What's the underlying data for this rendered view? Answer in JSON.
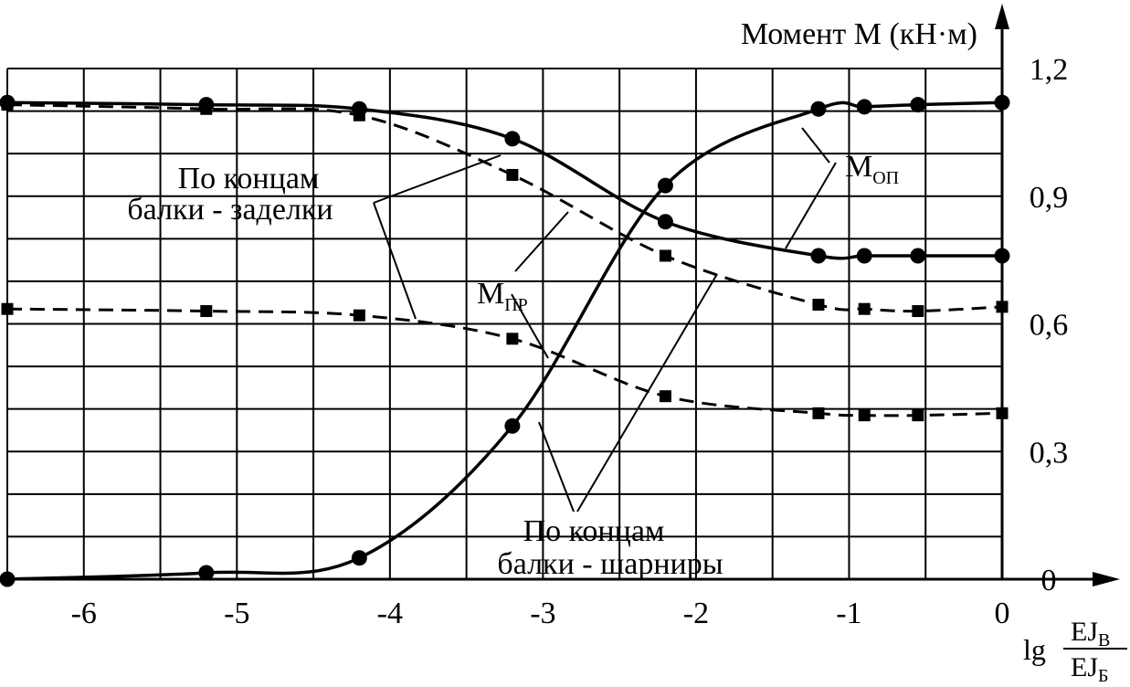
{
  "chart_data": {
    "type": "line",
    "ylabel": "Момент М (кН·м)",
    "xlabel": {
      "prefix": "lg",
      "numerator": "EJ",
      "numerator_sub": "В",
      "denominator": "EJ",
      "denominator_sub": "Б"
    },
    "xlim": [
      -6.5,
      0
    ],
    "ylim": [
      0,
      1.2
    ],
    "x_ticks": [
      -6,
      -5,
      -4,
      -3,
      -2,
      -1,
      0
    ],
    "y_ticks": [
      {
        "value": 0,
        "label": "0"
      },
      {
        "value": 0.3,
        "label": "0,3"
      },
      {
        "value": 0.6,
        "label": "0,6"
      },
      {
        "value": 0.9,
        "label": "0,9"
      },
      {
        "value": 1.2,
        "label": "1,2"
      }
    ],
    "grid": true,
    "series": [
      {
        "marker": "circle",
        "style": "solid",
        "points": [
          [
            -6.5,
            1.12
          ],
          [
            -5.2,
            1.115
          ],
          [
            -4.2,
            1.105
          ],
          [
            -3.2,
            1.035
          ],
          [
            -2.2,
            0.84
          ],
          [
            -1.2,
            0.76
          ],
          [
            -0.9,
            0.76
          ],
          [
            -0.55,
            0.76
          ],
          [
            0,
            0.76
          ]
        ]
      },
      {
        "marker": "circle",
        "style": "solid",
        "points": [
          [
            -6.5,
            0.0
          ],
          [
            -5.2,
            0.015
          ],
          [
            -4.2,
            0.05
          ],
          [
            -3.2,
            0.36
          ],
          [
            -2.2,
            0.925
          ],
          [
            -1.2,
            1.105
          ],
          [
            -0.9,
            1.11
          ],
          [
            -0.55,
            1.115
          ],
          [
            0,
            1.12
          ]
        ]
      },
      {
        "marker": "square",
        "style": "dashed",
        "points": [
          [
            -6.5,
            1.115
          ],
          [
            -5.2,
            1.105
          ],
          [
            -4.2,
            1.09
          ],
          [
            -3.2,
            0.95
          ],
          [
            -2.2,
            0.76
          ],
          [
            -1.2,
            0.645
          ],
          [
            -0.9,
            0.635
          ],
          [
            -0.55,
            0.63
          ],
          [
            0,
            0.64
          ]
        ]
      },
      {
        "marker": "square",
        "style": "dashed",
        "points": [
          [
            -6.5,
            0.635
          ],
          [
            -5.2,
            0.63
          ],
          [
            -4.2,
            0.62
          ],
          [
            -3.2,
            0.565
          ],
          [
            -2.2,
            0.43
          ],
          [
            -1.2,
            0.39
          ],
          [
            -0.9,
            0.385
          ],
          [
            -0.55,
            0.385
          ],
          [
            0,
            0.39
          ]
        ]
      }
    ],
    "annotations": {
      "fixed_ends": [
        "По концам",
        "балки - заделки"
      ],
      "hinged_ends": [
        "По концам",
        "балки - шарниры"
      ],
      "m_op": {
        "main": "М",
        "sub": "ОП"
      },
      "m_pr": {
        "main": "М",
        "sub": "ПР"
      }
    }
  }
}
